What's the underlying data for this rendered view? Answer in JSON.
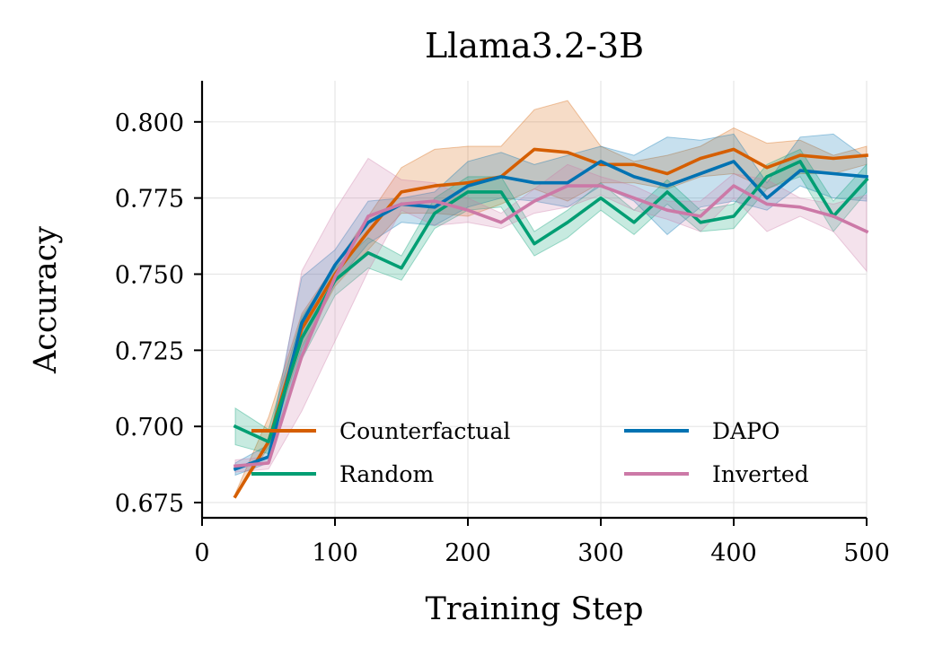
{
  "chart_data": {
    "type": "line",
    "title": "Llama3.2-3B",
    "xlabel": "Training Step",
    "ylabel": "Accuracy",
    "xlim": [
      0,
      500
    ],
    "ylim": [
      0.67,
      0.8135
    ],
    "xticks": [
      0,
      100,
      200,
      300,
      400,
      500
    ],
    "xtick_labels": [
      "0",
      "100",
      "200",
      "300",
      "400",
      "500"
    ],
    "yticks": [
      0.675,
      0.7,
      0.725,
      0.75,
      0.775,
      0.8
    ],
    "ytick_labels": [
      "0.675",
      "0.700",
      "0.725",
      "0.750",
      "0.775",
      "0.800"
    ],
    "grid": true,
    "legend_position": "lower-center",
    "x": [
      25,
      50,
      75,
      100,
      125,
      150,
      175,
      200,
      225,
      250,
      275,
      300,
      325,
      350,
      375,
      400,
      425,
      450,
      475,
      500
    ],
    "series": [
      {
        "name": "Counterfactual",
        "color": "#d55e00",
        "values": [
          0.677,
          0.695,
          0.732,
          0.75,
          0.764,
          0.777,
          0.779,
          0.78,
          0.782,
          0.791,
          0.79,
          0.786,
          0.786,
          0.783,
          0.788,
          0.791,
          0.785,
          0.789,
          0.788,
          0.789
        ],
        "lower": [
          0.677,
          0.693,
          0.726,
          0.746,
          0.758,
          0.77,
          0.77,
          0.769,
          0.773,
          0.778,
          0.774,
          0.78,
          0.78,
          0.778,
          0.782,
          0.783,
          0.778,
          0.783,
          0.783,
          0.786
        ],
        "upper": [
          0.678,
          0.703,
          0.737,
          0.753,
          0.769,
          0.785,
          0.791,
          0.792,
          0.792,
          0.804,
          0.807,
          0.792,
          0.787,
          0.789,
          0.792,
          0.798,
          0.793,
          0.794,
          0.789,
          0.792
        ]
      },
      {
        "name": "DAPO",
        "color": "#0072b2",
        "values": [
          0.686,
          0.69,
          0.734,
          0.753,
          0.767,
          0.773,
          0.772,
          0.779,
          0.782,
          0.78,
          0.78,
          0.787,
          0.782,
          0.779,
          0.783,
          0.787,
          0.775,
          0.784,
          0.783,
          0.782
        ],
        "lower": [
          0.684,
          0.688,
          0.725,
          0.747,
          0.76,
          0.767,
          0.766,
          0.772,
          0.775,
          0.774,
          0.772,
          0.779,
          0.774,
          0.763,
          0.772,
          0.774,
          0.771,
          0.779,
          0.775,
          0.774
        ],
        "upper": [
          0.688,
          0.694,
          0.749,
          0.758,
          0.774,
          0.775,
          0.777,
          0.787,
          0.79,
          0.786,
          0.789,
          0.792,
          0.789,
          0.795,
          0.794,
          0.796,
          0.78,
          0.795,
          0.796,
          0.788
        ]
      },
      {
        "name": "Random",
        "color": "#009e73",
        "values": [
          0.7,
          0.695,
          0.729,
          0.748,
          0.757,
          0.752,
          0.77,
          0.777,
          0.777,
          0.76,
          0.767,
          0.775,
          0.767,
          0.777,
          0.767,
          0.769,
          0.782,
          0.787,
          0.769,
          0.781
        ],
        "lower": [
          0.694,
          0.691,
          0.722,
          0.743,
          0.752,
          0.748,
          0.765,
          0.771,
          0.772,
          0.756,
          0.762,
          0.771,
          0.763,
          0.773,
          0.764,
          0.765,
          0.778,
          0.782,
          0.764,
          0.777
        ],
        "upper": [
          0.706,
          0.699,
          0.736,
          0.752,
          0.762,
          0.756,
          0.775,
          0.782,
          0.782,
          0.764,
          0.771,
          0.78,
          0.771,
          0.781,
          0.771,
          0.773,
          0.786,
          0.791,
          0.774,
          0.786
        ]
      },
      {
        "name": "Inverted",
        "color": "#cc79a7",
        "values": [
          0.687,
          0.688,
          0.723,
          0.749,
          0.769,
          0.773,
          0.774,
          0.771,
          0.767,
          0.774,
          0.779,
          0.779,
          0.775,
          0.771,
          0.769,
          0.779,
          0.773,
          0.772,
          0.769,
          0.764
        ],
        "lower": [
          0.685,
          0.686,
          0.705,
          0.728,
          0.751,
          0.771,
          0.766,
          0.767,
          0.765,
          0.77,
          0.772,
          0.776,
          0.771,
          0.768,
          0.764,
          0.775,
          0.764,
          0.769,
          0.764,
          0.751
        ],
        "upper": [
          0.689,
          0.69,
          0.751,
          0.771,
          0.788,
          0.781,
          0.78,
          0.775,
          0.77,
          0.778,
          0.786,
          0.782,
          0.779,
          0.774,
          0.774,
          0.783,
          0.781,
          0.775,
          0.773,
          0.776
        ]
      }
    ]
  }
}
